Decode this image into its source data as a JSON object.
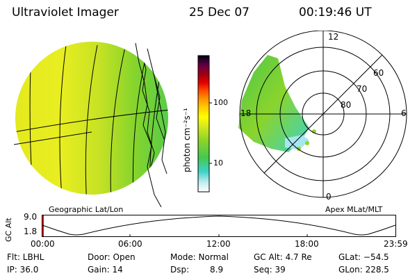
{
  "header": {
    "instrument": "Ultraviolet Imager",
    "date": "25 Dec 07",
    "time": "00:19:46 UT"
  },
  "colorbar": {
    "unit_label": "photon cm⁻²s⁻¹",
    "tick_100": "100",
    "tick_10": "10",
    "colors": [
      "#ffffff",
      "#a6e6ee",
      "#3cd2c8",
      "#44c850",
      "#8fd428",
      "#d6e81e",
      "#ffff00",
      "#ffdc00",
      "#ffa800",
      "#ff6400",
      "#e60000",
      "#aa0000",
      "#780028",
      "#4a0050",
      "#1e002c",
      "#000000"
    ]
  },
  "left_panel": {
    "caption": "Geographic Lat/Lon"
  },
  "right_panel": {
    "caption": "Apex MLat/MLT",
    "mlt_labels": {
      "top": "12",
      "bottom": "0",
      "left": "18",
      "right": "6"
    },
    "lat_labels": [
      "60",
      "70",
      "80"
    ]
  },
  "timeline": {
    "ylabel": "GC Alt",
    "ytick_high": "9.0",
    "ytick_low": "1.8",
    "xticks": [
      "00:00",
      "06:00",
      "12:00",
      "18:00",
      "23:59"
    ]
  },
  "info": {
    "filter": "Flt: LBHL",
    "door": "Door: Open",
    "mode": "Mode: Normal",
    "gc_alt": "GC Alt: 4.7 Re",
    "glat": "GLat: −54.5",
    "ip": "IP: 36.0",
    "gain": "Gain: 14",
    "dsp_label": "Dsp:",
    "dsp_value": "8.9",
    "seq": "Seq: 39",
    "glon": "GLon: 228.5"
  }
}
